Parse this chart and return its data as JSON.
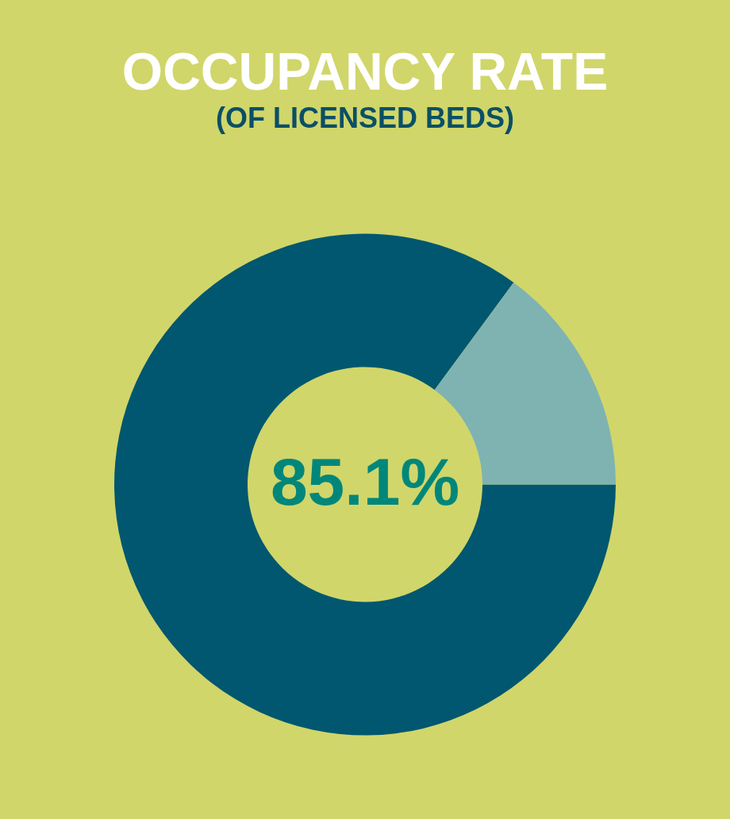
{
  "chart_data": {
    "type": "donut",
    "title": "OCCUPANCY RATE",
    "subtitle": "(OF LICENSED BEDS)",
    "categories": [
      null,
      null
    ],
    "values": [
      85.1,
      14.9
    ],
    "colors": [
      "#00576f",
      "#7fb3b2"
    ],
    "value_labels": [
      "85.1%",
      null
    ],
    "legend": false
  }
}
